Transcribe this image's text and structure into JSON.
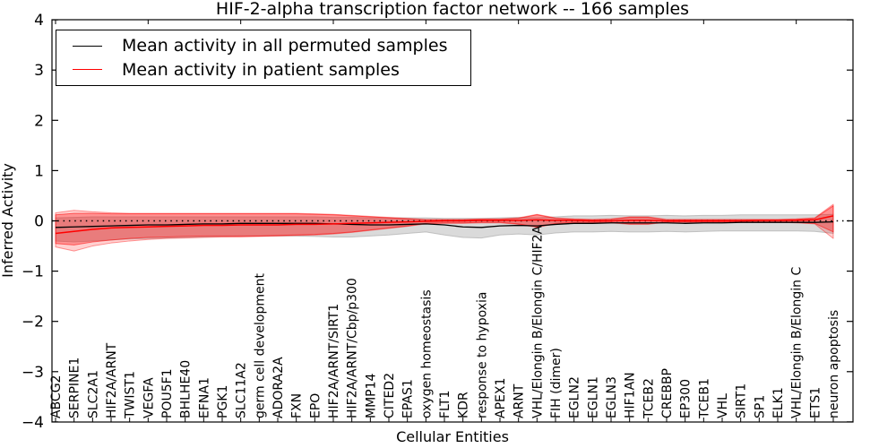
{
  "chart_data": {
    "type": "line",
    "title": "HIF-2-alpha transcription factor network -- 166 samples",
    "xlabel": "Cellular Entities",
    "ylabel": "Inferred Activity",
    "ylim": [
      -4,
      4
    ],
    "yticks": [
      -4,
      -3,
      -2,
      -1,
      0,
      1,
      2,
      3,
      4
    ],
    "x_tick_rotation": 90,
    "grid": false,
    "legend_position": "upper left",
    "zero_line": {
      "style": "dotted",
      "color": "#000000",
      "y": 0
    },
    "categories": [
      "ABCG2",
      "SERPINE1",
      "SLC2A1",
      "HIF2A/ARNT",
      "TWIST1",
      "VEGFA",
      "POU5F1",
      "BHLHE40",
      "EFNA1",
      "PGK1",
      "SLC11A2",
      "germ cell development",
      "ADORA2A",
      "FXN",
      "EPO",
      "HIF2A/ARNT/SIRT1",
      "HIF2A/ARNT/Cbp/p300",
      "MMP14",
      "CITED2",
      "EPAS1",
      "oxygen homeostasis",
      "FLT1",
      "KDR",
      "response to hypoxia",
      "APEX1",
      "ARNT",
      "VHL/Elongin B/Elongin C/HIF2A",
      "FIH (dimer)",
      "EGLN2",
      "EGLN1",
      "EGLN3",
      "HIF1AN",
      "TCEB2",
      "CREBBP",
      "EP300",
      "TCEB1",
      "VHL",
      "SIRT1",
      "SP1",
      "ELK1",
      "VHL/Elongin B/Elongin C",
      "ETS1",
      "neuron apoptosis"
    ],
    "series": [
      {
        "name": "Mean activity in all permuted samples",
        "color": "#000000",
        "values": [
          -0.13,
          -0.12,
          -0.11,
          -0.1,
          -0.09,
          -0.08,
          -0.08,
          -0.07,
          -0.06,
          -0.06,
          -0.05,
          -0.05,
          -0.05,
          -0.05,
          -0.05,
          -0.06,
          -0.07,
          -0.08,
          -0.08,
          -0.07,
          -0.06,
          -0.08,
          -0.12,
          -0.13,
          -0.1,
          -0.09,
          -0.1,
          -0.07,
          -0.05,
          -0.05,
          -0.04,
          -0.04,
          -0.04,
          -0.04,
          -0.05,
          -0.04,
          -0.04,
          -0.03,
          -0.03,
          -0.03,
          -0.03,
          -0.03,
          -0.02
        ]
      },
      {
        "name": "Mean activity in patient samples",
        "color": "#ff0000",
        "values": [
          -0.25,
          -0.21,
          -0.17,
          -0.14,
          -0.13,
          -0.12,
          -0.11,
          -0.1,
          -0.09,
          -0.09,
          -0.08,
          -0.08,
          -0.08,
          -0.07,
          -0.07,
          -0.06,
          -0.05,
          -0.04,
          -0.03,
          -0.02,
          -0.01,
          0.0,
          0.0,
          0.01,
          0.01,
          0.01,
          0.02,
          0.01,
          0.01,
          0.0,
          0.0,
          0.01,
          0.01,
          0.0,
          0.0,
          0.0,
          0.0,
          0.0,
          0.01,
          0.01,
          0.01,
          0.02,
          0.1
        ]
      }
    ],
    "bands": [
      {
        "name": "permuted-samples-range",
        "color": "#a8a8a8",
        "opacity": 0.42,
        "upper": [
          0.06,
          0.07,
          0.08,
          0.08,
          0.08,
          0.08,
          0.08,
          0.08,
          0.08,
          0.08,
          0.08,
          0.08,
          0.08,
          0.08,
          0.08,
          0.07,
          0.07,
          0.06,
          0.06,
          0.06,
          0.06,
          0.05,
          0.05,
          0.05,
          0.06,
          0.07,
          0.06,
          0.08,
          0.1,
          0.1,
          0.11,
          0.1,
          0.1,
          0.11,
          0.1,
          0.11,
          0.11,
          0.12,
          0.12,
          0.12,
          0.12,
          0.12,
          0.13
        ],
        "lower": [
          -0.4,
          -0.42,
          -0.4,
          -0.38,
          -0.36,
          -0.35,
          -0.34,
          -0.33,
          -0.32,
          -0.31,
          -0.3,
          -0.3,
          -0.3,
          -0.3,
          -0.31,
          -0.32,
          -0.32,
          -0.3,
          -0.28,
          -0.25,
          -0.22,
          -0.28,
          -0.33,
          -0.34,
          -0.28,
          -0.26,
          -0.28,
          -0.24,
          -0.22,
          -0.22,
          -0.21,
          -0.22,
          -0.22,
          -0.21,
          -0.22,
          -0.21,
          -0.2,
          -0.2,
          -0.2,
          -0.2,
          -0.2,
          -0.21,
          -0.25
        ]
      },
      {
        "name": "patient-samples-range-outer",
        "color": "#ff0000",
        "opacity": 0.18,
        "upper": [
          0.16,
          0.21,
          0.18,
          0.16,
          0.15,
          0.15,
          0.15,
          0.15,
          0.15,
          0.15,
          0.15,
          0.15,
          0.15,
          0.15,
          0.14,
          0.13,
          0.11,
          0.09,
          0.07,
          0.05,
          0.03,
          0.03,
          0.03,
          0.04,
          0.04,
          0.06,
          0.13,
          0.06,
          0.04,
          0.03,
          0.04,
          0.08,
          0.08,
          0.03,
          0.03,
          0.03,
          0.03,
          0.03,
          0.03,
          0.03,
          0.04,
          0.06,
          0.33
        ],
        "lower": [
          -0.52,
          -0.6,
          -0.5,
          -0.44,
          -0.4,
          -0.37,
          -0.35,
          -0.34,
          -0.33,
          -0.32,
          -0.32,
          -0.31,
          -0.3,
          -0.29,
          -0.28,
          -0.26,
          -0.23,
          -0.19,
          -0.15,
          -0.11,
          -0.06,
          -0.05,
          -0.05,
          -0.04,
          -0.04,
          -0.07,
          -0.13,
          -0.06,
          -0.04,
          -0.04,
          -0.04,
          -0.07,
          -0.07,
          -0.03,
          -0.03,
          -0.03,
          -0.03,
          -0.03,
          -0.03,
          -0.03,
          -0.04,
          -0.06,
          -0.35
        ]
      },
      {
        "name": "patient-samples-range-inner",
        "color": "#ff0000",
        "opacity": 0.3,
        "upper": [
          0.12,
          0.15,
          0.15,
          0.14,
          0.14,
          0.14,
          0.14,
          0.14,
          0.14,
          0.14,
          0.14,
          0.14,
          0.14,
          0.14,
          0.13,
          0.12,
          0.1,
          0.08,
          0.06,
          0.04,
          0.02,
          0.02,
          0.02,
          0.03,
          0.03,
          0.05,
          0.12,
          0.05,
          0.03,
          0.02,
          0.03,
          0.07,
          0.07,
          0.02,
          0.02,
          0.02,
          0.02,
          0.02,
          0.02,
          0.02,
          0.03,
          0.05,
          0.3
        ],
        "lower": [
          -0.45,
          -0.48,
          -0.42,
          -0.38,
          -0.35,
          -0.33,
          -0.32,
          -0.31,
          -0.3,
          -0.3,
          -0.3,
          -0.3,
          -0.29,
          -0.28,
          -0.27,
          -0.25,
          -0.22,
          -0.18,
          -0.14,
          -0.1,
          -0.05,
          -0.04,
          -0.04,
          -0.03,
          -0.03,
          -0.06,
          -0.12,
          -0.05,
          -0.03,
          -0.03,
          -0.03,
          -0.06,
          -0.06,
          -0.02,
          -0.02,
          -0.02,
          -0.02,
          -0.02,
          -0.02,
          -0.02,
          -0.03,
          -0.05,
          -0.22
        ]
      }
    ]
  }
}
